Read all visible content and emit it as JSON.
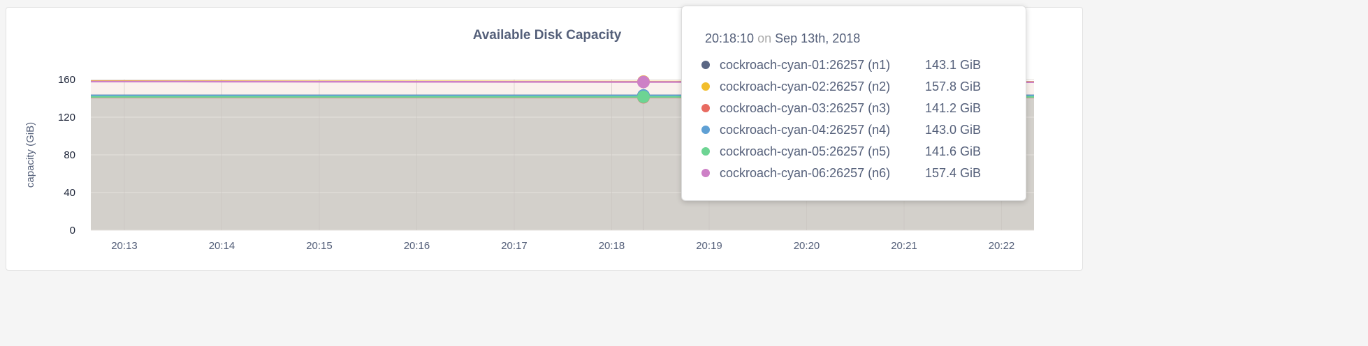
{
  "chart_data": {
    "type": "area",
    "title": "Available Disk Capacity",
    "ylabel": "capacity (GiB)",
    "xlabel": "",
    "ylim": [
      0,
      160
    ],
    "yticks": [
      "0",
      "40",
      "80",
      "120",
      "160"
    ],
    "xticks": [
      "20:13",
      "20:14",
      "20:15",
      "20:16",
      "20:17",
      "20:18",
      "20:19",
      "20:20",
      "20:21",
      "20:22"
    ],
    "grid": true,
    "x": [
      "20:13",
      "20:14",
      "20:15",
      "20:16",
      "20:17",
      "20:18",
      "20:19",
      "20:20",
      "20:21",
      "20:22"
    ],
    "series": [
      {
        "name": "cockroach-cyan-01:26257 (n1)",
        "color": "#5a6784",
        "values": [
          143.1,
          143.1,
          143.1,
          143.1,
          143.1,
          143.1,
          143.1,
          143.1,
          143.1,
          143.1
        ]
      },
      {
        "name": "cockroach-cyan-02:26257 (n2)",
        "color": "#f2be2c",
        "values": [
          158.3,
          158.2,
          158.1,
          158.0,
          157.9,
          157.8,
          157.8,
          157.7,
          157.7,
          157.6
        ]
      },
      {
        "name": "cockroach-cyan-03:26257 (n3)",
        "color": "#e86b61",
        "values": [
          141.2,
          141.2,
          141.2,
          141.2,
          141.2,
          141.2,
          141.2,
          141.2,
          141.2,
          141.2
        ]
      },
      {
        "name": "cockroach-cyan-04:26257 (n4)",
        "color": "#5fa0d4",
        "values": [
          143.0,
          143.0,
          143.0,
          143.0,
          143.0,
          143.0,
          143.0,
          143.0,
          143.0,
          143.0
        ]
      },
      {
        "name": "cockroach-cyan-05:26257 (n5)",
        "color": "#6dd493",
        "values": [
          141.6,
          141.6,
          141.6,
          141.6,
          141.6,
          141.6,
          141.6,
          141.6,
          141.6,
          141.6
        ]
      },
      {
        "name": "cockroach-cyan-06:26257 (n6)",
        "color": "#cd80c6",
        "values": [
          157.9,
          157.8,
          157.7,
          157.6,
          157.5,
          157.4,
          157.4,
          157.3,
          157.3,
          157.2
        ]
      }
    ]
  },
  "tooltip": {
    "time": "20:18:10",
    "on": "on",
    "date": "Sep 13th, 2018",
    "rows": [
      {
        "label": "cockroach-cyan-01:26257 (n1)",
        "value": "143.1 GiB",
        "color": "#5a6784"
      },
      {
        "label": "cockroach-cyan-02:26257 (n2)",
        "value": "157.8 GiB",
        "color": "#f2be2c"
      },
      {
        "label": "cockroach-cyan-03:26257 (n3)",
        "value": "141.2 GiB",
        "color": "#e86b61"
      },
      {
        "label": "cockroach-cyan-04:26257 (n4)",
        "value": "143.0 GiB",
        "color": "#5fa0d4"
      },
      {
        "label": "cockroach-cyan-05:26257 (n5)",
        "value": "141.6 GiB",
        "color": "#6dd493"
      },
      {
        "label": "cockroach-cyan-06:26257 (n6)",
        "value": "157.4 GiB",
        "color": "#cd80c6"
      }
    ]
  }
}
